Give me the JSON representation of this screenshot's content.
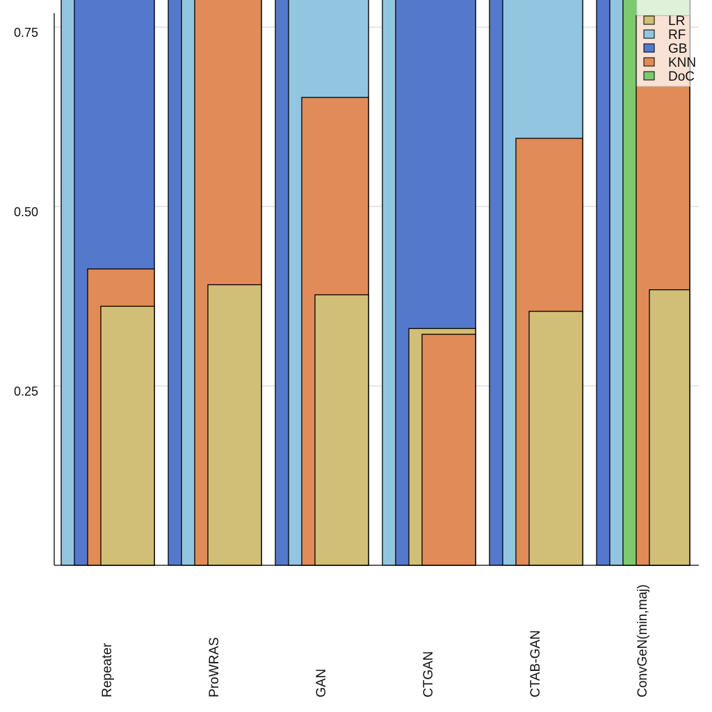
{
  "chart_data": {
    "type": "bar",
    "title": "",
    "xlabel": "",
    "ylabel": "",
    "ylim": [
      0,
      0.788
    ],
    "yticks": [
      0.25,
      0.5,
      0.75
    ],
    "ytick_labels": [
      "0.25",
      "0.50",
      "0.75"
    ],
    "grid": "horizontal",
    "legend_position": "top-right",
    "legend": [
      {
        "name": "LR",
        "color": "#d1bf77"
      },
      {
        "name": "RF",
        "color": "#92c5e0"
      },
      {
        "name": "GB",
        "color": "#5479cc"
      },
      {
        "name": "KNN",
        "color": "#e08b58"
      },
      {
        "name": "DoC",
        "color": "#7dc96e"
      }
    ],
    "categories": [
      "Repeater",
      "ProWRAS",
      "GAN",
      "CTGAN",
      "CTAB-GAN",
      "ConvGeN(min,maj)"
    ],
    "groups": [
      {
        "category": "Repeater",
        "bars": [
          {
            "series": "RF",
            "value": 0.9,
            "clipped": true
          },
          {
            "series": "GB",
            "value": 0.9,
            "clipped": true
          },
          {
            "series": "KNN",
            "value": 0.413
          },
          {
            "series": "LR",
            "value": 0.361
          }
        ]
      },
      {
        "category": "ProWRAS",
        "bars": [
          {
            "series": "GB",
            "value": 0.9,
            "clipped": true
          },
          {
            "series": "RF",
            "value": 0.9,
            "clipped": true
          },
          {
            "series": "KNN",
            "value": 0.9,
            "clipped": true
          },
          {
            "series": "LR",
            "value": 0.391
          }
        ]
      },
      {
        "category": "GAN",
        "bars": [
          {
            "series": "GB",
            "value": 0.9,
            "clipped": true
          },
          {
            "series": "RF",
            "value": 0.9,
            "clipped": true
          },
          {
            "series": "KNN",
            "value": 0.652
          },
          {
            "series": "LR",
            "value": 0.377
          }
        ]
      },
      {
        "category": "CTGAN",
        "bars": [
          {
            "series": "RF",
            "value": 0.9,
            "clipped": true
          },
          {
            "series": "GB",
            "value": 0.9,
            "clipped": true
          },
          {
            "series": "LR",
            "value": 0.33
          },
          {
            "series": "KNN",
            "value": 0.322
          }
        ]
      },
      {
        "category": "CTAB-GAN",
        "bars": [
          {
            "series": "GB",
            "value": 0.9,
            "clipped": true
          },
          {
            "series": "RF",
            "value": 0.9,
            "clipped": true
          },
          {
            "series": "KNN",
            "value": 0.595
          },
          {
            "series": "LR",
            "value": 0.354
          }
        ]
      },
      {
        "category": "ConvGeN(min,maj)",
        "bars": [
          {
            "series": "GB",
            "value": 0.9,
            "clipped": true
          },
          {
            "series": "RF",
            "value": 0.9,
            "clipped": true
          },
          {
            "series": "DoC",
            "value": 0.9,
            "clipped": true
          },
          {
            "series": "KNN",
            "value": 0.766
          },
          {
            "series": "LR",
            "value": 0.384
          }
        ]
      }
    ]
  }
}
